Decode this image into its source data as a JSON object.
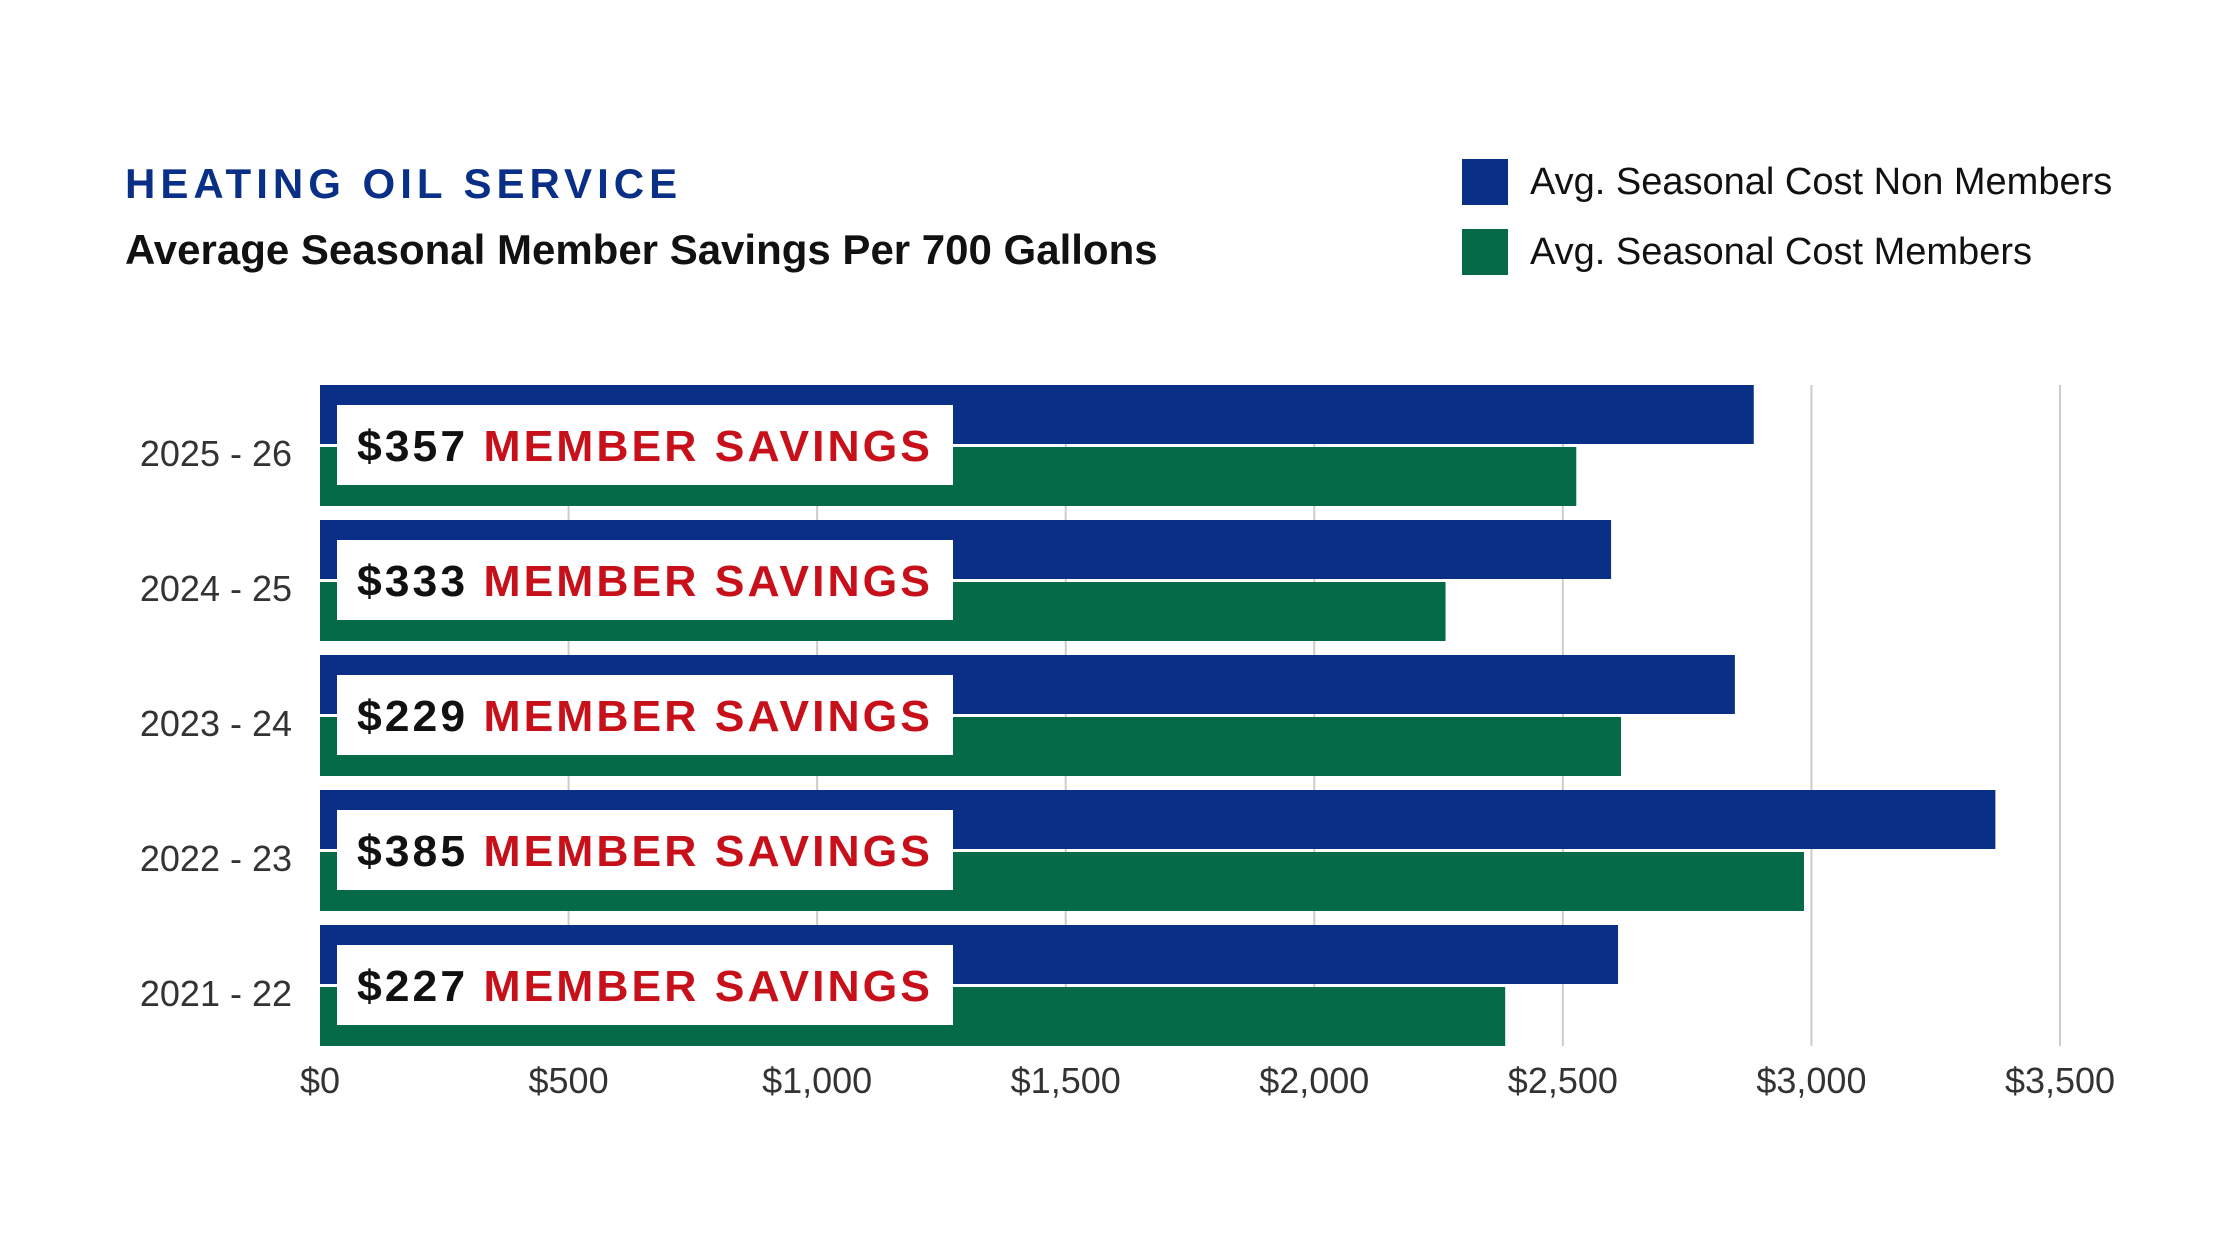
{
  "header": {
    "eyebrow": "HEATING OIL SERVICE",
    "title": "Average Seasonal Member Savings Per 700 Gallons"
  },
  "chart_data": {
    "type": "bar",
    "orientation": "horizontal",
    "categories": [
      "2025 - 26",
      "2024 - 25",
      "2023 - 24",
      "2022 - 23",
      "2021 - 22"
    ],
    "series": [
      {
        "name": "Avg. Seasonal Cost Non Members",
        "color": "#0a2f87",
        "values": [
          2884,
          2597,
          2846,
          3370,
          2611
        ]
      },
      {
        "name": "Avg. Seasonal Cost Members",
        "color": "#046a48",
        "values": [
          2527,
          2264,
          2617,
          2985,
          2384
        ]
      }
    ],
    "xlim": [
      0,
      3500
    ],
    "x_ticks": [
      0,
      500,
      1000,
      1500,
      2000,
      2500,
      3000,
      3500
    ],
    "x_tick_labels": [
      "$0",
      "$500",
      "$1,000",
      "$1,500",
      "$2,000",
      "$2,500",
      "$3,000",
      "$3,500"
    ],
    "grid": true,
    "legend_position": "top-right",
    "annotations": [
      {
        "amount": "$357",
        "text": "MEMBER SAVINGS"
      },
      {
        "amount": "$333",
        "text": "MEMBER SAVINGS"
      },
      {
        "amount": "$229",
        "text": "MEMBER SAVINGS"
      },
      {
        "amount": "$385",
        "text": "MEMBER SAVINGS"
      },
      {
        "amount": "$227",
        "text": "MEMBER SAVINGS"
      }
    ],
    "annotation_colors": {
      "amount": "#111111",
      "text": "#c8101a"
    },
    "xlabel": "",
    "ylabel": ""
  }
}
